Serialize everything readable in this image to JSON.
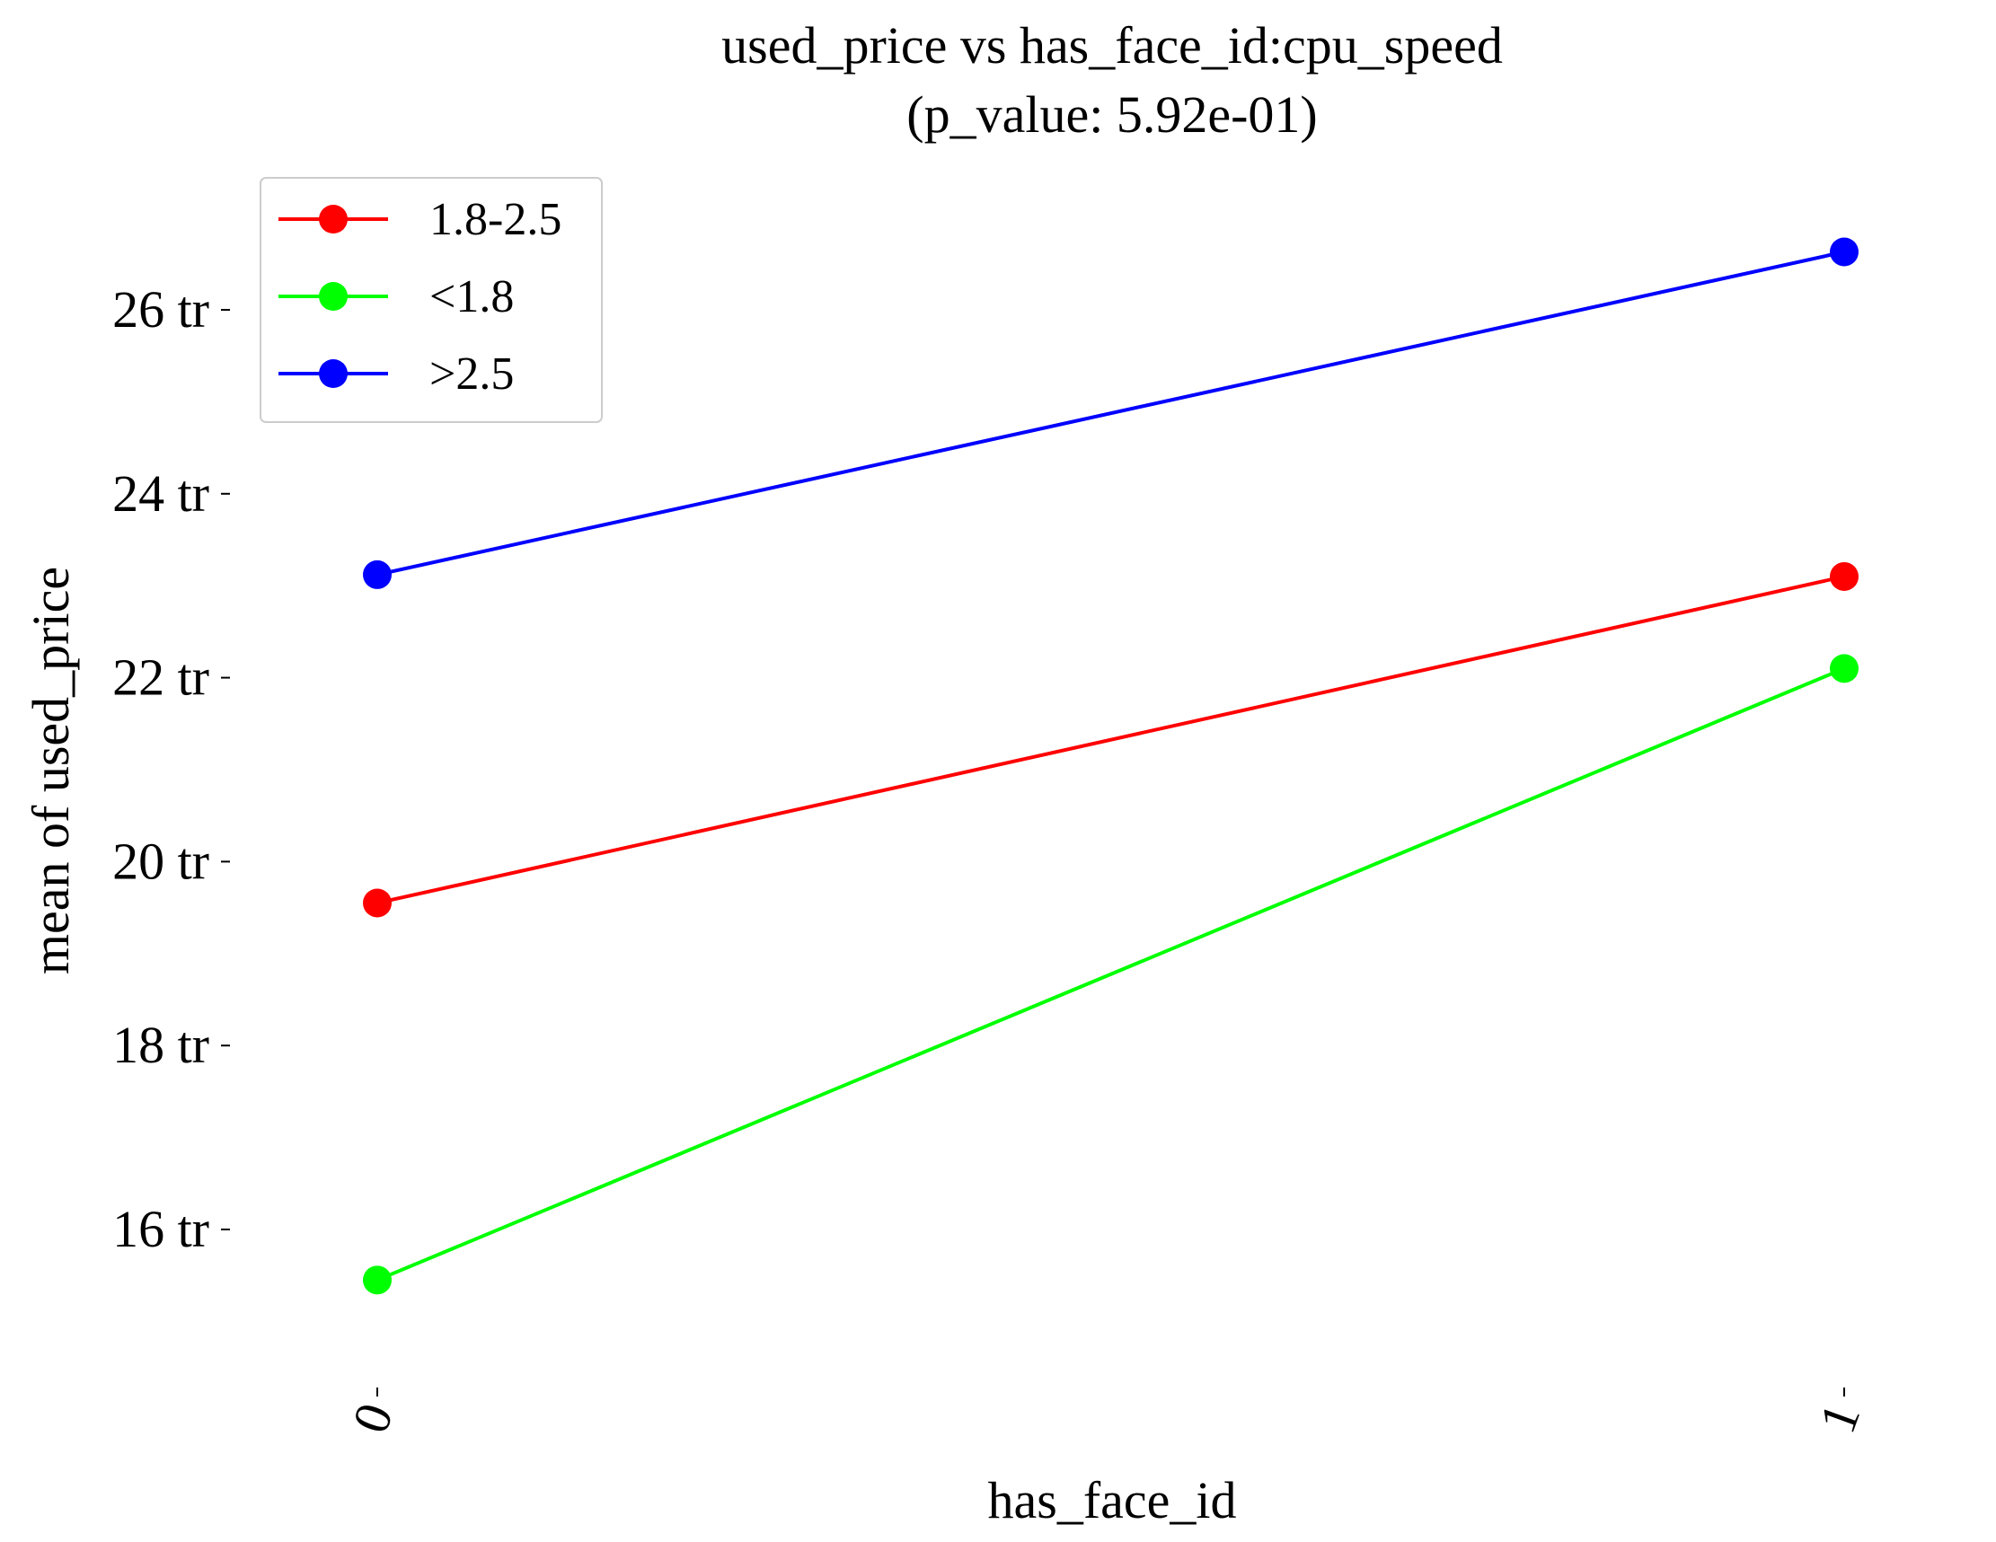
{
  "chart_data": {
    "type": "line",
    "title": "used_price vs has_face_id:cpu_speed",
    "subtitle": "(p_value: 5.92e-01)",
    "xlabel": "has_face_id",
    "ylabel": "mean of used_price",
    "categories": [
      "0",
      "1"
    ],
    "y_ticks": [
      16,
      18,
      20,
      22,
      24,
      26
    ],
    "y_tick_labels": [
      "16 tr",
      "18 tr",
      "20 tr",
      "22 tr",
      "24 tr",
      "26 tr"
    ],
    "ylim": [
      14.3,
      27.6
    ],
    "grid": false,
    "legend_position": "top-left",
    "series": [
      {
        "name": "1.8-2.5",
        "color": "#ff0000",
        "values": [
          19.55,
          23.1
        ]
      },
      {
        "name": "<1.8",
        "color": "#00ff00",
        "values": [
          15.45,
          22.1
        ]
      },
      {
        "name": ">2.5",
        "color": "#0000ff",
        "values": [
          23.12,
          26.63
        ]
      }
    ]
  }
}
